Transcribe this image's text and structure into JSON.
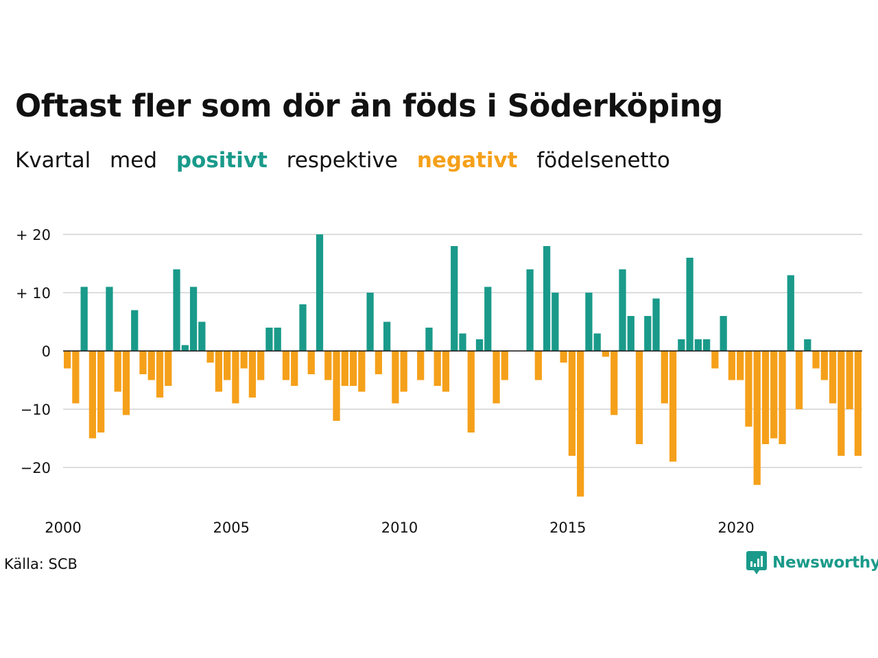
{
  "title": "Oftast fler som dör än föds i Söderköping",
  "subtitle": {
    "part1": "Kvartal",
    "part2": "med",
    "positive": "positivt",
    "part3": "respektive",
    "negative": "negativt",
    "part4": "födelsenetto"
  },
  "source": "Källa: SCB",
  "brand": "Newsworthy",
  "colors": {
    "positive": "#1a9a8a",
    "negative": "#f5a01a",
    "grid": "#dddddd",
    "zero_line": "#111111",
    "text": "#111111"
  },
  "chart_data": {
    "type": "bar",
    "x_start": 2000,
    "x_end": 2023.75,
    "xticks": [
      {
        "value": 2000,
        "label": "2000"
      },
      {
        "value": 2005,
        "label": "2005"
      },
      {
        "value": 2010,
        "label": "2010"
      },
      {
        "value": 2015,
        "label": "2015"
      },
      {
        "value": 2020,
        "label": "2020"
      }
    ],
    "yticks": [
      {
        "value": 20,
        "label": "+ 20"
      },
      {
        "value": 10,
        "label": "+ 10"
      },
      {
        "value": 0,
        "label": "0"
      },
      {
        "value": -10,
        "label": "−10"
      },
      {
        "value": -20,
        "label": "−20"
      }
    ],
    "ylim": [
      -27,
      20
    ],
    "grid": true,
    "series": [
      {
        "values": [
          -3,
          -9,
          11,
          -15,
          -14,
          11,
          -7,
          -11,
          7,
          -4,
          -5,
          -8,
          -6,
          14,
          1,
          11,
          5,
          -2,
          -7,
          -5,
          -9,
          -3,
          -8,
          -5,
          4,
          4,
          -5,
          -6,
          8,
          -4,
          20,
          -5,
          -12,
          -6,
          -6,
          -7,
          10,
          -4,
          5,
          -9,
          -7,
          0,
          -5,
          4,
          -6,
          -7,
          18,
          3,
          -14,
          2,
          11,
          -9,
          -5,
          0,
          0,
          14,
          -5,
          18,
          10,
          -2,
          -18,
          -25,
          10,
          3,
          -1,
          -11,
          14,
          6,
          -16,
          6,
          9,
          -9,
          -19,
          2,
          16,
          2,
          2,
          -3,
          6,
          -5,
          -5,
          -13,
          -23,
          -16,
          -15,
          -16,
          13,
          -10,
          2,
          -3,
          -5,
          -9,
          -18,
          -10,
          -18
        ]
      }
    ]
  }
}
